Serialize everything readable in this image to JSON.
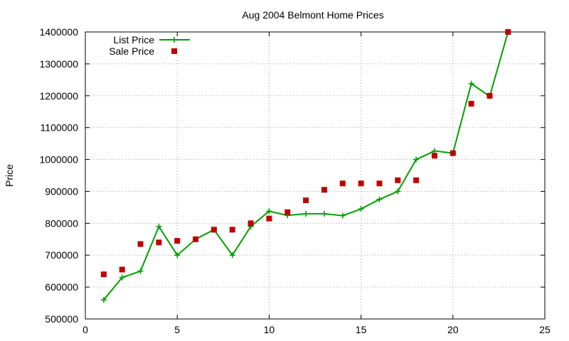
{
  "chart_data": {
    "type": "line",
    "title": "Aug 2004 Belmont Home Prices",
    "xlabel": "",
    "ylabel": "Price",
    "xlim": [
      0,
      25
    ],
    "ylim": [
      500000,
      1400000
    ],
    "x_ticks": [
      "0",
      "5",
      "10",
      "15",
      "20",
      "25"
    ],
    "y_ticks": [
      "500000",
      "600000",
      "700000",
      "800000",
      "900000",
      "1000000",
      "1100000",
      "1200000",
      "1300000",
      "1400000"
    ],
    "grid": true,
    "legend_position": "top-left",
    "series": [
      {
        "name": "List Price",
        "style": "lines+crosses",
        "color": "#00a000",
        "points": [
          [
            1,
            560000
          ],
          [
            2,
            630000
          ],
          [
            3,
            650000
          ],
          [
            4,
            790000
          ],
          [
            5,
            700000
          ],
          [
            6,
            750000
          ],
          [
            7,
            780000
          ],
          [
            8,
            700000
          ],
          [
            9,
            790000
          ],
          [
            10,
            838000
          ],
          [
            11,
            825000
          ],
          [
            12,
            830000
          ],
          [
            13,
            830000
          ],
          [
            14,
            824000
          ],
          [
            15,
            845000
          ],
          [
            16,
            875000
          ],
          [
            17,
            900000
          ],
          [
            18,
            1000000
          ],
          [
            19,
            1027000
          ],
          [
            20,
            1020000
          ],
          [
            21,
            1238000
          ],
          [
            22,
            1198000
          ],
          [
            23,
            1400000
          ]
        ]
      },
      {
        "name": "Sale Price",
        "style": "squares",
        "color": "#c00000",
        "points": [
          [
            1,
            640000
          ],
          [
            2,
            655000
          ],
          [
            3,
            735000
          ],
          [
            4,
            740000
          ],
          [
            5,
            745000
          ],
          [
            6,
            750000
          ],
          [
            7,
            780000
          ],
          [
            8,
            780000
          ],
          [
            9,
            800000
          ],
          [
            10,
            815000
          ],
          [
            11,
            835000
          ],
          [
            12,
            872000
          ],
          [
            13,
            905000
          ],
          [
            14,
            925000
          ],
          [
            15,
            925000
          ],
          [
            16,
            925000
          ],
          [
            17,
            935000
          ],
          [
            18,
            935000
          ],
          [
            19,
            1012000
          ],
          [
            20,
            1020000
          ],
          [
            21,
            1175000
          ],
          [
            22,
            1200000
          ],
          [
            23,
            1400000
          ]
        ]
      }
    ]
  }
}
